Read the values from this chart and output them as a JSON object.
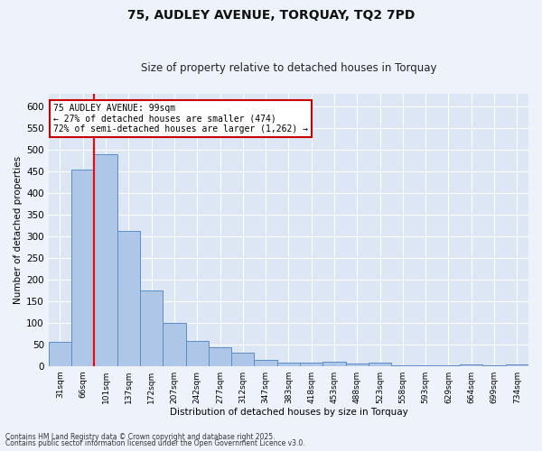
{
  "title_line1": "75, AUDLEY AVENUE, TORQUAY, TQ2 7PD",
  "title_line2": "Size of property relative to detached houses in Torquay",
  "xlabel": "Distribution of detached houses by size in Torquay",
  "ylabel": "Number of detached properties",
  "bar_labels": [
    "31sqm",
    "66sqm",
    "101sqm",
    "137sqm",
    "172sqm",
    "207sqm",
    "242sqm",
    "277sqm",
    "312sqm",
    "347sqm",
    "383sqm",
    "418sqm",
    "453sqm",
    "488sqm",
    "523sqm",
    "558sqm",
    "593sqm",
    "629sqm",
    "664sqm",
    "699sqm",
    "734sqm"
  ],
  "bar_values": [
    55,
    455,
    490,
    312,
    175,
    100,
    58,
    43,
    30,
    15,
    8,
    8,
    10,
    5,
    8,
    2,
    1,
    1,
    3,
    1,
    4
  ],
  "bar_color": "#aec6e8",
  "bar_edge_color": "#5b8ec4",
  "fig_background_color": "#eef2fa",
  "ax_background_color": "#dce6f5",
  "red_line_x": 1.5,
  "annotation_text": "75 AUDLEY AVENUE: 99sqm\n← 27% of detached houses are smaller (474)\n72% of semi-detached houses are larger (1,262) →",
  "annotation_box_color": "#ffffff",
  "annotation_box_edge": "#cc0000",
  "footer_line1": "Contains HM Land Registry data © Crown copyright and database right 2025.",
  "footer_line2": "Contains public sector information licensed under the Open Government Licence v3.0.",
  "ylim": [
    0,
    630
  ],
  "yticks": [
    0,
    50,
    100,
    150,
    200,
    250,
    300,
    350,
    400,
    450,
    500,
    550,
    600
  ]
}
